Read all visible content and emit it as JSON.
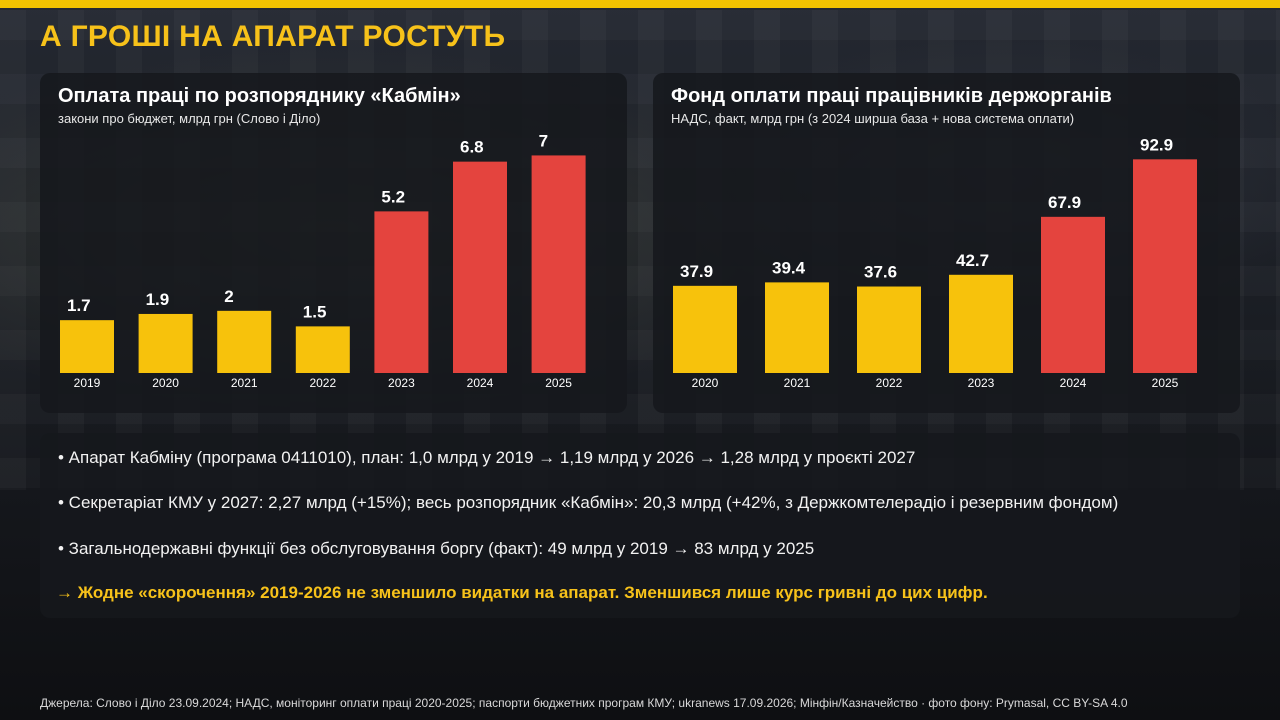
{
  "title": "А ГРОШІ НА АПАРАТ РОСТУТЬ",
  "colors": {
    "accent": "#f2c200",
    "bar_yellow": "#f7c20c",
    "bar_red": "#e4443e",
    "panel": "#16181d"
  },
  "chart_data": [
    {
      "type": "bar",
      "title": "Оплата праці по розпоряднику «Кабмін»",
      "subtitle": "закони про бюджет, млрд грн (Слово і Діло)",
      "categories": [
        "2019",
        "2020",
        "2021",
        "2022",
        "2023",
        "2024",
        "2025"
      ],
      "values": [
        1.7,
        1.9,
        2,
        1.5,
        5.2,
        6.8,
        7
      ],
      "value_labels": [
        "1.7",
        "1.9",
        "2",
        "1.5",
        "5.2",
        "6.8",
        "7"
      ],
      "bar_colors": [
        "#f7c20c",
        "#f7c20c",
        "#f7c20c",
        "#f7c20c",
        "#e4443e",
        "#e4443e",
        "#e4443e"
      ],
      "ylim": [
        0,
        7.4
      ],
      "grid": false,
      "xlabel": "",
      "ylabel": ""
    },
    {
      "type": "bar",
      "title": "Фонд оплати праці працівників держорганів",
      "subtitle": "НАДС, факт, млрд грн (з 2024 ширша база + нова система оплати)",
      "categories": [
        "2020",
        "2021",
        "2022",
        "2023",
        "2024",
        "2025"
      ],
      "values": [
        37.9,
        39.4,
        37.6,
        42.7,
        67.9,
        92.9
      ],
      "value_labels": [
        "37.9",
        "39.4",
        "37.6",
        "42.7",
        "67.9",
        "92.9"
      ],
      "bar_colors": [
        "#f7c20c",
        "#f7c20c",
        "#f7c20c",
        "#f7c20c",
        "#e4443e",
        "#e4443e"
      ],
      "ylim": [
        0,
        100
      ],
      "grid": false,
      "xlabel": "",
      "ylabel": ""
    }
  ],
  "bullets": [
    "• Апарат Кабміну (програма 0411010), план: 1,0 млрд у 2019 → 1,19 млрд у 2026 → 1,28 млрд у проєкті 2027",
    "• Секретаріат КМУ у 2027: 2,27 млрд (+15%); весь розпорядник «Кабмін»: 20,3 млрд (+42%, з Держкомтелерадіо і резервним фондом)",
    "• Загальнодержавні функції без обслуговування боргу (факт): 49 млрд у 2019 → 83 млрд у 2025"
  ],
  "conclusion": "→ Жодне «скорочення» 2019-2026 не зменшило видатки на апарат. Зменшився лише курс гривні до цих цифр.",
  "footer": "Джерела: Слово і Діло 23.09.2024; НАДС, моніторинг оплати праці 2020-2025; паспорти бюджетних програм КМУ; ukranews 17.09.2026; Мінфін/Казначейство · фото фону: Prymasal, CC BY-SA 4.0"
}
